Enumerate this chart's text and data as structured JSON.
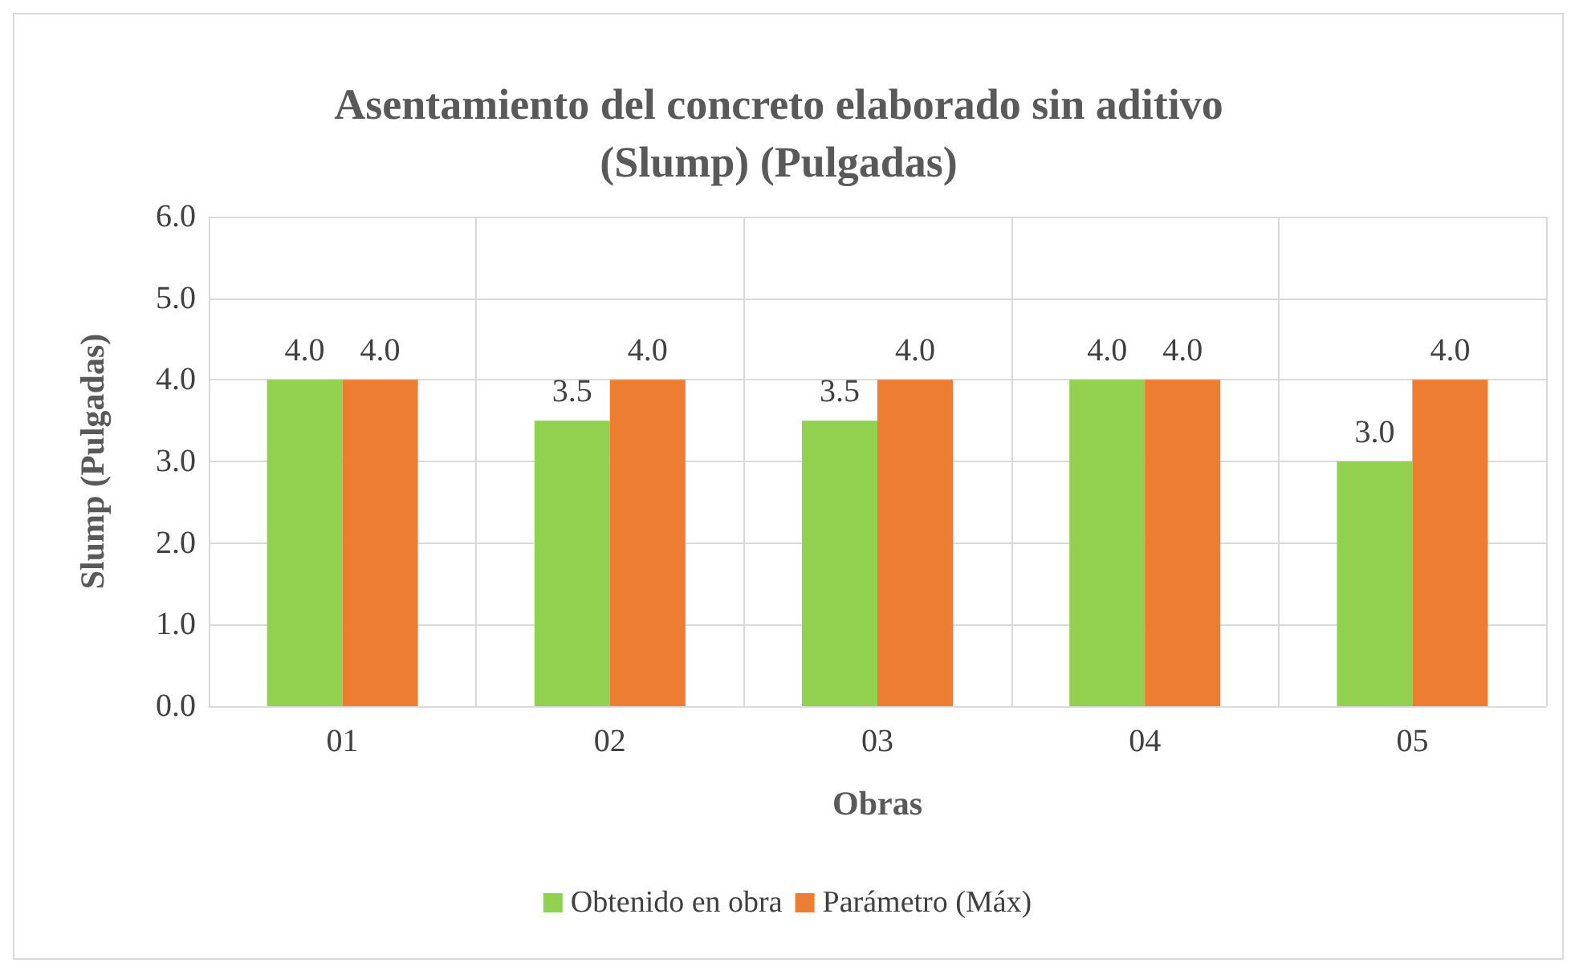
{
  "chart_data": {
    "type": "bar",
    "title": "Asentamiento del concreto elaborado sin aditivo\n(Slump) (Pulgadas)",
    "xlabel": "Obras",
    "ylabel": "Slump (Pulgadas)",
    "categories": [
      "01",
      "02",
      "03",
      "04",
      "05"
    ],
    "series": [
      {
        "name": "Obtenido en obra",
        "color": "#92d050",
        "values": [
          4.0,
          3.5,
          3.5,
          4.0,
          3.0
        ],
        "value_labels": [
          "4.0",
          "3.5",
          "3.5",
          "4.0",
          "3.0"
        ]
      },
      {
        "name": "Parámetro (Máx)",
        "color": "#ed7d31",
        "values": [
          4.0,
          4.0,
          4.0,
          4.0,
          4.0
        ],
        "value_labels": [
          "4.0",
          "4.0",
          "4.0",
          "4.0",
          "4.0"
        ]
      }
    ],
    "ylim": [
      0,
      6
    ],
    "yticks": [
      {
        "value": 0,
        "label": "0.0"
      },
      {
        "value": 1,
        "label": "1.0"
      },
      {
        "value": 2,
        "label": "2.0"
      },
      {
        "value": 3,
        "label": "3.0"
      },
      {
        "value": 4,
        "label": "4.0"
      },
      {
        "value": 5,
        "label": "5.0"
      },
      {
        "value": 6,
        "label": "6.0"
      }
    ],
    "grid": true,
    "legend": "bottom"
  }
}
